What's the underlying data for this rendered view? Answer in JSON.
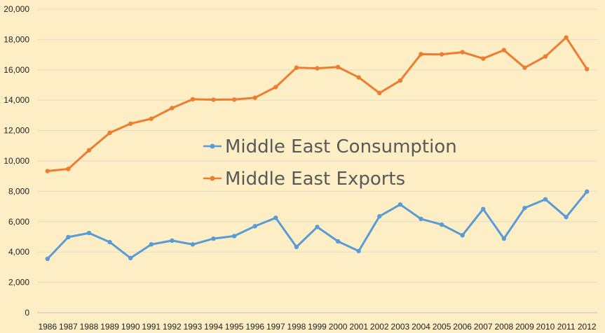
{
  "chart_data": {
    "type": "line",
    "x": [
      "1986",
      "1987",
      "1988",
      "1989",
      "1990",
      "1991",
      "1992",
      "1993",
      "1994",
      "1995",
      "1996",
      "1997",
      "1998",
      "1999",
      "2000",
      "2001",
      "2002",
      "2003",
      "2004",
      "2005",
      "2006",
      "2007",
      "2008",
      "2009",
      "2010",
      "2011",
      "2012"
    ],
    "ylim": [
      0,
      20000
    ],
    "yticks": [
      "0",
      "2,000",
      "4,000",
      "6,000",
      "8,000",
      "10,000",
      "12,000",
      "14,000",
      "16,000",
      "18,000",
      "20,000"
    ],
    "grid": true,
    "legend_position": "center",
    "series": [
      {
        "name": "Middle East Consumption",
        "color": "#5b9bd5",
        "values": [
          3550,
          4980,
          5250,
          4650,
          3600,
          4500,
          4750,
          4500,
          4880,
          5050,
          5700,
          6250,
          4330,
          5650,
          4700,
          4060,
          6350,
          7130,
          6180,
          5800,
          5100,
          6830,
          4880,
          6900,
          7470,
          6300,
          7980
        ]
      },
      {
        "name": "Middle East Exports",
        "color": "#ed7d31",
        "values": [
          9330,
          9470,
          10700,
          11850,
          12450,
          12780,
          13480,
          14060,
          14030,
          14040,
          14160,
          14860,
          16140,
          16100,
          16180,
          15500,
          14470,
          15290,
          17030,
          17020,
          17160,
          16740,
          17300,
          16140,
          16880,
          18130,
          16050
        ]
      }
    ]
  }
}
